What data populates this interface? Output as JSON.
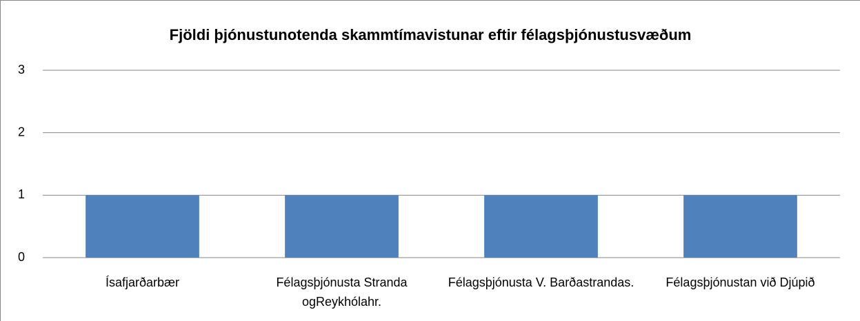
{
  "chart_data": {
    "type": "bar",
    "title": "Fjöldi þjónustunotenda skammtímavistunar eftir félagsþjónustusvæðum",
    "categories": [
      "Ísafjarðarbær",
      "Félagsþjónusta Stranda ogReykhólahr.",
      "Félagsþjónusta V. Barðastrandas.",
      "Félagsþjónustan við Djúpið"
    ],
    "values": [
      1,
      1,
      1,
      1
    ],
    "color": "#4f81bd",
    "ylim": [
      0,
      3
    ],
    "yticks": [
      0,
      1,
      2,
      3
    ],
    "grid": true
  }
}
